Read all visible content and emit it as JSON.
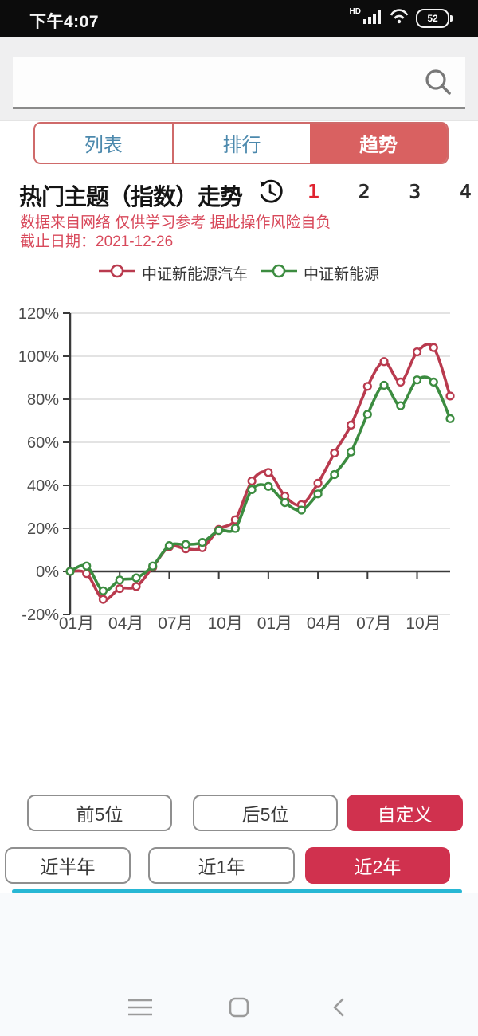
{
  "status_bar": {
    "time": "下午4:07",
    "hd": "HD",
    "battery": "52"
  },
  "search": {
    "value": "",
    "placeholder": ""
  },
  "tabs": [
    {
      "label": "列表",
      "active": false
    },
    {
      "label": "排行",
      "active": false
    },
    {
      "label": "趋势",
      "active": true
    }
  ],
  "header": {
    "title": "热门主题（指数）走势",
    "pages": [
      "1",
      "2",
      "3",
      "4"
    ],
    "active_page": "1"
  },
  "disclaimer": {
    "line1": "数据来自网络 仅供学习参考 据此操作风险自负",
    "line2": "截止日期：2021-12-26"
  },
  "chart_data": {
    "type": "line",
    "title": "热门主题（指数）走势",
    "x": [
      "2020-01",
      "2020-02",
      "2020-03",
      "2020-04",
      "2020-05",
      "2020-06",
      "2020-07",
      "2020-08",
      "2020-09",
      "2020-10",
      "2020-11",
      "2020-12",
      "2021-01",
      "2021-02",
      "2021-03",
      "2021-04",
      "2021-05",
      "2021-06",
      "2021-07",
      "2021-08",
      "2021-09",
      "2021-10",
      "2021-11",
      "2021-12"
    ],
    "xtick_labels": [
      "01月",
      "04月",
      "07月",
      "10月",
      "01月",
      "04月",
      "07月",
      "10月"
    ],
    "xtick_indices": [
      0,
      3,
      6,
      9,
      12,
      15,
      18,
      21
    ],
    "ylabel": "",
    "ylim": [
      -20,
      120
    ],
    "ytick_step": 20,
    "ytick_suffix": "%",
    "grid": "horizontal",
    "legend_position": "top",
    "series": [
      {
        "name": "中证新能源汽车",
        "color": "#b93a4e",
        "values": [
          0,
          -1,
          -13,
          -8,
          -7,
          2,
          11.5,
          10.5,
          11,
          19.5,
          24,
          42,
          46,
          35,
          31,
          41,
          55,
          68,
          86,
          97.5,
          88,
          102,
          104,
          81.5
        ]
      },
      {
        "name": "中证新能源",
        "color": "#3c8c40",
        "values": [
          0,
          2.5,
          -9,
          -4,
          -3,
          2.5,
          12,
          12.5,
          13.5,
          19,
          20,
          38,
          39.5,
          32,
          28.5,
          36,
          45,
          55.5,
          73,
          86.5,
          77,
          89,
          88,
          71
        ]
      }
    ]
  },
  "buttons": {
    "row1": [
      {
        "label": "前5位",
        "active": false
      },
      {
        "label": "后5位",
        "active": false
      },
      {
        "label": "自定义",
        "active": true
      }
    ],
    "row2": [
      {
        "label": "近半年",
        "active": false
      },
      {
        "label": "近1年",
        "active": false
      },
      {
        "label": "近2年",
        "active": true
      }
    ]
  },
  "footer": {
    "icons": [
      "menu",
      "home",
      "back"
    ]
  },
  "colors": {
    "accent_red": "#d0314e",
    "tab_selected_red": "#d96161",
    "tab_text_blue": "#4c89ad",
    "disclaimer_red": "#d8495b",
    "page_number_active": "#e02330",
    "series_red": "#b93a4e",
    "series_green": "#3c8c40",
    "cyan_bar": "#28b7d4",
    "status_bar_bg": "#0c0c0c"
  }
}
